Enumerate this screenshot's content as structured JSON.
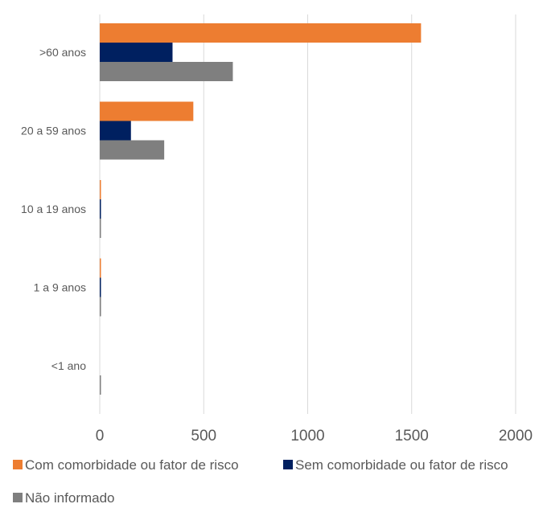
{
  "chart_data": {
    "type": "bar",
    "orientation": "horizontal",
    "categories": [
      ">60 anos",
      "20 a 59 anos",
      "10 a 19 anos",
      "1 a 9  anos",
      "<1 ano"
    ],
    "series": [
      {
        "name": "Com comorbidade ou fator de risco",
        "color": "#ED7D31",
        "values": [
          1545,
          450,
          5,
          1,
          0
        ]
      },
      {
        "name": "Sem comorbidade ou fator de risco",
        "color": "#002060",
        "values": [
          350,
          150,
          1,
          1,
          0
        ]
      },
      {
        "name": "Não informado",
        "color": "#7F7F7F",
        "values": [
          640,
          310,
          4,
          6,
          1
        ]
      }
    ],
    "x_ticks": [
      "0",
      "500",
      "1000",
      "1500",
      "2000"
    ],
    "xlim": [
      0,
      2000
    ],
    "grid": "vertical gridlines",
    "legend_position": "bottom"
  }
}
